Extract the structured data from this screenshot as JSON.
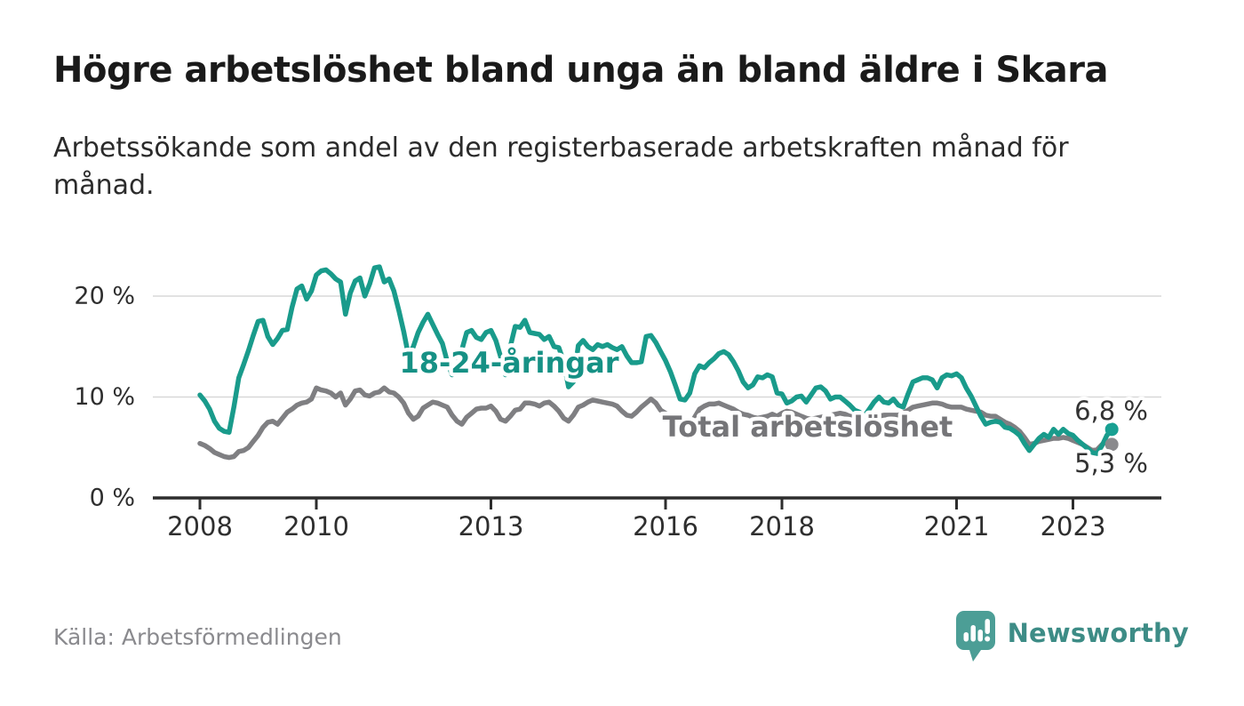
{
  "title": "Högre arbetslöshet bland unga än bland äldre i Skara",
  "subtitle_lines": [
    "Arbetssökande som andel av den registerbaserade arbetskraften månad för",
    "månad."
  ],
  "source": "Källa: Arbetsförmedlingen",
  "brand": {
    "name": "Newsworthy",
    "icon": "newsworthy-speech-bubble-bar-chart-icon",
    "text_color": "#3d8c86",
    "icon_color": "#4c9e96"
  },
  "chart_data": {
    "type": "line",
    "title": "Högre arbetslöshet bland unga än bland äldre i Skara",
    "x_start": "2008-01",
    "frequency": "monthly",
    "x_ticks": [
      {
        "label": "2008",
        "year": 2008
      },
      {
        "label": "2010",
        "year": 2010
      },
      {
        "label": "2013",
        "year": 2013
      },
      {
        "label": "2016",
        "year": 2016
      },
      {
        "label": "2018",
        "year": 2018
      },
      {
        "label": "2021",
        "year": 2021
      },
      {
        "label": "2023",
        "year": 2023
      }
    ],
    "y_ticks": [
      {
        "label": "0 %",
        "value": 0
      },
      {
        "label": "10 %",
        "value": 10
      },
      {
        "label": "20 %",
        "value": 20
      }
    ],
    "ylim": [
      0,
      24
    ],
    "grid": "horizontal",
    "colors": {
      "grid": "#d8d8d8",
      "axis": "#2d2d2d",
      "tick_text": "#2e2e2e",
      "end_label_text": "#333333"
    },
    "series": [
      {
        "name": "Total arbetslöshet",
        "color": "#7f7f82",
        "label_color": "#757578",
        "dot_color": "#8a8a8d",
        "end_label": "5,3 %",
        "values": [
          5.4,
          5.2,
          4.9,
          4.5,
          4.3,
          4.1,
          4.0,
          4.1,
          4.6,
          4.7,
          5.0,
          5.6,
          6.2,
          7.0,
          7.5,
          7.6,
          7.3,
          7.9,
          8.5,
          8.8,
          9.2,
          9.4,
          9.5,
          9.8,
          10.9,
          10.7,
          10.6,
          10.4,
          10.0,
          10.4,
          9.2,
          9.8,
          10.6,
          10.7,
          10.2,
          10.1,
          10.4,
          10.5,
          10.9,
          10.5,
          10.4,
          10.0,
          9.4,
          8.4,
          7.8,
          8.1,
          8.9,
          9.2,
          9.5,
          9.4,
          9.2,
          9.0,
          8.2,
          7.6,
          7.3,
          8.0,
          8.4,
          8.8,
          8.9,
          8.9,
          9.1,
          8.6,
          7.8,
          7.6,
          8.1,
          8.7,
          8.8,
          9.4,
          9.4,
          9.3,
          9.1,
          9.4,
          9.5,
          9.1,
          8.6,
          7.9,
          7.6,
          8.2,
          9.0,
          9.2,
          9.5,
          9.7,
          9.6,
          9.5,
          9.4,
          9.3,
          9.1,
          8.6,
          8.2,
          8.1,
          8.5,
          9.0,
          9.4,
          9.8,
          9.4,
          8.7,
          8.4,
          8.1,
          7.8,
          7.5,
          7.4,
          7.3,
          8.0,
          8.8,
          9.1,
          9.3,
          9.3,
          9.4,
          9.2,
          9.0,
          8.8,
          8.5,
          8.3,
          8.2,
          8.0,
          7.9,
          8.0,
          8.1,
          8.3,
          8.1,
          8.4,
          8.6,
          8.5,
          8.3,
          8.1,
          7.9,
          7.8,
          7.9,
          8.0,
          8.1,
          8.2,
          8.3,
          8.4,
          8.3,
          8.1,
          8.0,
          7.9,
          7.8,
          7.9,
          8.0,
          8.1,
          8.2,
          8.2,
          8.2,
          8.2,
          8.4,
          8.7,
          9.0,
          9.1,
          9.2,
          9.3,
          9.4,
          9.4,
          9.3,
          9.1,
          9.0,
          9.0,
          9.0,
          8.8,
          8.7,
          8.6,
          8.5,
          8.2,
          8.1,
          8.1,
          7.8,
          7.5,
          7.3,
          7.0,
          6.6,
          6.0,
          5.3,
          5.4,
          5.6,
          5.7,
          5.8,
          5.9,
          5.9,
          6.0,
          5.9,
          5.7,
          5.5,
          5.3,
          5.0,
          4.7,
          4.8,
          5.3,
          5.6,
          5.3
        ]
      },
      {
        "name": "18-24-åringar",
        "color": "#199b8b",
        "label_color": "#169185",
        "dot_color": "#18a092",
        "end_label": "6,8 %",
        "values": [
          10.2,
          9.6,
          8.8,
          7.6,
          6.9,
          6.6,
          6.5,
          9.0,
          11.9,
          13.2,
          14.6,
          16.1,
          17.5,
          17.6,
          16.0,
          15.2,
          15.8,
          16.6,
          16.7,
          18.9,
          20.7,
          21.0,
          19.7,
          20.5,
          22.1,
          22.5,
          22.6,
          22.2,
          21.7,
          21.4,
          18.2,
          20.3,
          21.5,
          21.8,
          20.0,
          21.2,
          22.8,
          22.9,
          21.4,
          21.7,
          20.5,
          18.6,
          16.5,
          14.1,
          15.0,
          16.4,
          17.4,
          18.2,
          17.2,
          16.2,
          15.3,
          13.5,
          12.2,
          13.0,
          14.7,
          16.4,
          16.6,
          15.9,
          15.7,
          16.4,
          16.6,
          15.6,
          14.0,
          12.2,
          15.0,
          17.0,
          16.9,
          17.6,
          16.4,
          16.3,
          16.2,
          15.7,
          16.0,
          15.0,
          14.9,
          13.5,
          11.0,
          11.5,
          15.1,
          15.6,
          15.0,
          14.7,
          15.2,
          15.0,
          15.2,
          14.9,
          14.7,
          15.0,
          14.1,
          13.4,
          13.4,
          13.5,
          16.0,
          16.1,
          15.4,
          14.5,
          13.6,
          12.5,
          11.2,
          9.8,
          9.7,
          10.4,
          12.3,
          13.1,
          12.9,
          13.4,
          13.8,
          14.3,
          14.5,
          14.2,
          13.5,
          12.6,
          11.5,
          10.9,
          11.2,
          12.0,
          11.9,
          12.2,
          12.0,
          10.4,
          10.3,
          9.4,
          9.6,
          10.0,
          10.1,
          9.5,
          10.2,
          10.9,
          11.0,
          10.6,
          9.8,
          10.0,
          10.0,
          9.6,
          9.2,
          8.7,
          8.5,
          8.1,
          8.8,
          9.5,
          10.0,
          9.5,
          9.4,
          9.8,
          9.2,
          9.0,
          10.3,
          11.5,
          11.7,
          11.9,
          11.9,
          11.7,
          10.9,
          11.9,
          12.2,
          12.1,
          12.3,
          11.9,
          10.9,
          10.1,
          9.1,
          8.1,
          7.3,
          7.5,
          7.6,
          7.5,
          7.0,
          6.9,
          6.6,
          6.2,
          5.4,
          4.7,
          5.3,
          5.9,
          6.3,
          6.0,
          6.8,
          6.3,
          6.8,
          6.4,
          6.2,
          5.7,
          5.3,
          4.9,
          4.5,
          4.4,
          5.2,
          6.2,
          6.8
        ]
      }
    ]
  }
}
